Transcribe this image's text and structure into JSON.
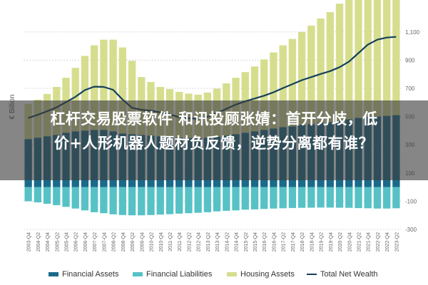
{
  "colors": {
    "financial_assets": "#1a6a8a",
    "financial_liabilities": "#56c2c6",
    "housing_assets": "#d6de8e",
    "net_wealth": "#14405a"
  },
  "banner": {
    "line1": "杠杆交易股票软件 和讯投顾张婧：首开分歧，低",
    "line2": "价+人形机器人题材负反馈，逆势分离都有谁？"
  },
  "chart_data": {
    "type": "bar",
    "ylabel": "€ Billion",
    "ylim": [
      -300,
      1200
    ],
    "yticks": [
      -300,
      -100,
      100,
      300,
      500,
      700,
      900,
      1100
    ],
    "ytick_labels": [
      "-300",
      "-100",
      "100",
      "300",
      "500",
      "700",
      "900",
      "1,100"
    ],
    "categories": [
      "2003-Q4",
      "2004-Q2",
      "2004-Q4",
      "2005-Q2",
      "2005-Q4",
      "2006-Q2",
      "2006-Q4",
      "2007-Q2",
      "2007-Q4",
      "2008-Q2",
      "2008-Q4",
      "2009-Q2",
      "2009-Q4",
      "2010-Q2",
      "2010-Q4",
      "2011-Q2",
      "2011-Q4",
      "2012-Q2",
      "2012-Q4",
      "2013-Q2",
      "2013-Q4",
      "2014-Q2",
      "2014-Q4",
      "2015-Q2",
      "2015-Q4",
      "2016-Q2",
      "2016-Q4",
      "2017-Q2",
      "2017-Q4",
      "2018-Q2",
      "2018-Q4",
      "2019-Q2",
      "2019-Q4",
      "2020-Q2",
      "2020-Q4",
      "2021-Q2",
      "2021-Q4",
      "2022-Q2",
      "2022-Q4",
      "2023-Q2"
    ],
    "series": [
      {
        "name": "Financial Assets",
        "values": [
          340,
          350,
          360,
          370,
          385,
          395,
          400,
          405,
          405,
          395,
          380,
          375,
          370,
          365,
          360,
          355,
          350,
          348,
          345,
          350,
          358,
          365,
          375,
          385,
          395,
          405,
          415,
          425,
          430,
          440,
          445,
          455,
          460,
          470,
          480,
          490,
          500,
          500,
          505,
          510
        ]
      },
      {
        "name": "Financial Liabilities",
        "values": [
          -100,
          -108,
          -118,
          -128,
          -140,
          -152,
          -165,
          -178,
          -185,
          -193,
          -198,
          -200,
          -200,
          -198,
          -195,
          -192,
          -188,
          -185,
          -182,
          -178,
          -172,
          -168,
          -165,
          -160,
          -158,
          -155,
          -152,
          -150,
          -148,
          -147,
          -146,
          -145,
          -145,
          -146,
          -147,
          -149,
          -150,
          -152,
          -152,
          -150
        ]
      },
      {
        "name": "Housing Assets",
        "values": [
          250,
          270,
          300,
          340,
          390,
          450,
          530,
          600,
          640,
          650,
          610,
          520,
          410,
          380,
          350,
          340,
          325,
          315,
          310,
          320,
          340,
          370,
          400,
          430,
          460,
          500,
          540,
          580,
          620,
          660,
          700,
          740,
          780,
          830,
          880,
          960,
          1050,
          1130,
          1180,
          1200
        ]
      },
      {
        "name": "Total Net Wealth",
        "values": [
          490,
          512,
          538,
          565,
          602,
          640,
          688,
          712,
          710,
          690,
          620,
          562,
          548,
          542,
          530,
          515,
          495,
          488,
          485,
          498,
          525,
          555,
          585,
          608,
          628,
          648,
          672,
          702,
          730,
          758,
          780,
          802,
          822,
          850,
          890,
          950,
          1010,
          1045,
          1060,
          1065
        ]
      }
    ]
  },
  "legend": [
    {
      "label": "Financial Assets",
      "kind": "bar",
      "color": "#1a6a8a"
    },
    {
      "label": "Financial Liabilities",
      "kind": "bar",
      "color": "#56c2c6"
    },
    {
      "label": "Housing Assets",
      "kind": "bar",
      "color": "#d6de8e"
    },
    {
      "label": "Total Net Wealth",
      "kind": "line",
      "color": "#14405a"
    }
  ]
}
